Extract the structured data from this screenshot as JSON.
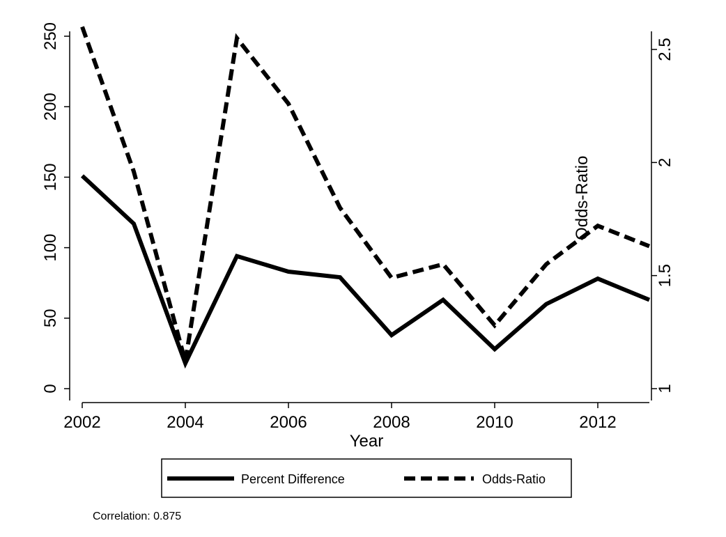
{
  "chart_data": {
    "type": "line",
    "title": "",
    "xlabel": "Year",
    "ylabel_left": "",
    "ylabel_right": "",
    "x": [
      2002,
      2003,
      2004,
      2005,
      2006,
      2007,
      2008,
      2009,
      2010,
      2011,
      2012,
      2013
    ],
    "x_ticks": [
      "2002",
      "2004",
      "2006",
      "2008",
      "2010",
      "2012"
    ],
    "xlim": [
      2002,
      2013
    ],
    "y_left_ticks": [
      "0",
      "50",
      "100",
      "150",
      "200",
      "250"
    ],
    "y_left_lim": [
      0,
      250
    ],
    "y_right_ticks": [
      "1",
      "1.5",
      "2",
      "2.5"
    ],
    "y_right_lim": [
      1,
      2.5
    ],
    "grid": false,
    "legend_placement": "bottom",
    "series": [
      {
        "name": "Percent Difference",
        "axis": "left",
        "style": "solid",
        "color": "#000000",
        "values": [
          151,
          117,
          18,
          94,
          83,
          79,
          38,
          63,
          28,
          60,
          78,
          63
        ]
      },
      {
        "name": "Odds-Ratio",
        "axis": "right",
        "style": "dashed",
        "color": "#000000",
        "values": [
          2.6,
          1.96,
          1.12,
          2.55,
          2.26,
          1.8,
          1.49,
          1.55,
          1.28,
          1.55,
          1.72,
          1.63
        ]
      }
    ],
    "annotations": [
      {
        "text": "Odds-Ratio",
        "x": 2012,
        "y_right": 1.72,
        "rotated": true
      }
    ],
    "note": "Correlation: 0.875"
  }
}
